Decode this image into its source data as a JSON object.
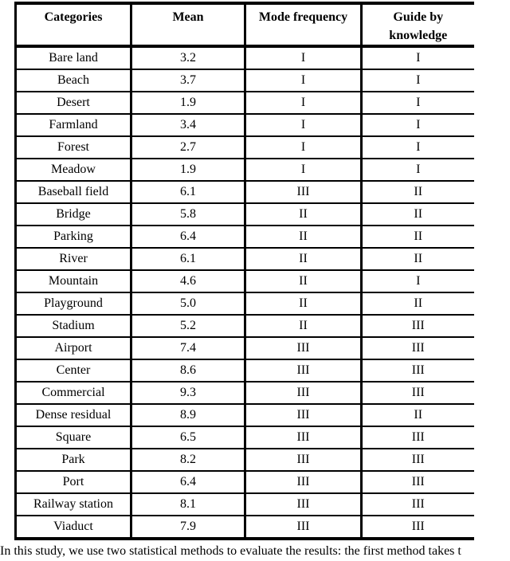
{
  "table": {
    "columns": [
      "Categories",
      "Mean",
      "Mode frequency",
      "Guide by knowledge"
    ],
    "rows": [
      [
        "Bare land",
        "3.2",
        "I",
        "I"
      ],
      [
        "Beach",
        "3.7",
        "I",
        "I"
      ],
      [
        "Desert",
        "1.9",
        "I",
        "I"
      ],
      [
        "Farmland",
        "3.4",
        "I",
        "I"
      ],
      [
        "Forest",
        "2.7",
        "I",
        "I"
      ],
      [
        "Meadow",
        "1.9",
        "I",
        "I"
      ],
      [
        "Baseball field",
        "6.1",
        "III",
        "II"
      ],
      [
        "Bridge",
        "5.8",
        "II",
        "II"
      ],
      [
        "Parking",
        "6.4",
        "II",
        "II"
      ],
      [
        "River",
        "6.1",
        "II",
        "II"
      ],
      [
        "Mountain",
        "4.6",
        "II",
        "I"
      ],
      [
        "Playground",
        "5.0",
        "II",
        "II"
      ],
      [
        "Stadium",
        "5.2",
        "II",
        "III"
      ],
      [
        "Airport",
        "7.4",
        "III",
        "III"
      ],
      [
        "Center",
        "8.6",
        "III",
        "III"
      ],
      [
        "Commercial",
        "9.3",
        "III",
        "III"
      ],
      [
        "Dense residual",
        "8.9",
        "III",
        "II"
      ],
      [
        "Square",
        "6.5",
        "III",
        "III"
      ],
      [
        "Park",
        "8.2",
        "III",
        "III"
      ],
      [
        "Port",
        "6.4",
        "III",
        "III"
      ],
      [
        "Railway station",
        "8.1",
        "III",
        "III"
      ],
      [
        "Viaduct",
        "7.9",
        "III",
        "III"
      ]
    ],
    "cell_names": [
      "category-cell",
      "mean-cell",
      "mode-frequency-cell",
      "guide-by-knowledge-cell"
    ]
  },
  "caption": "In this study, we use two statistical methods to evaluate the results: the first method takes t",
  "colors": {
    "background": "#ffffff",
    "text": "#000000",
    "border": "#000000"
  }
}
